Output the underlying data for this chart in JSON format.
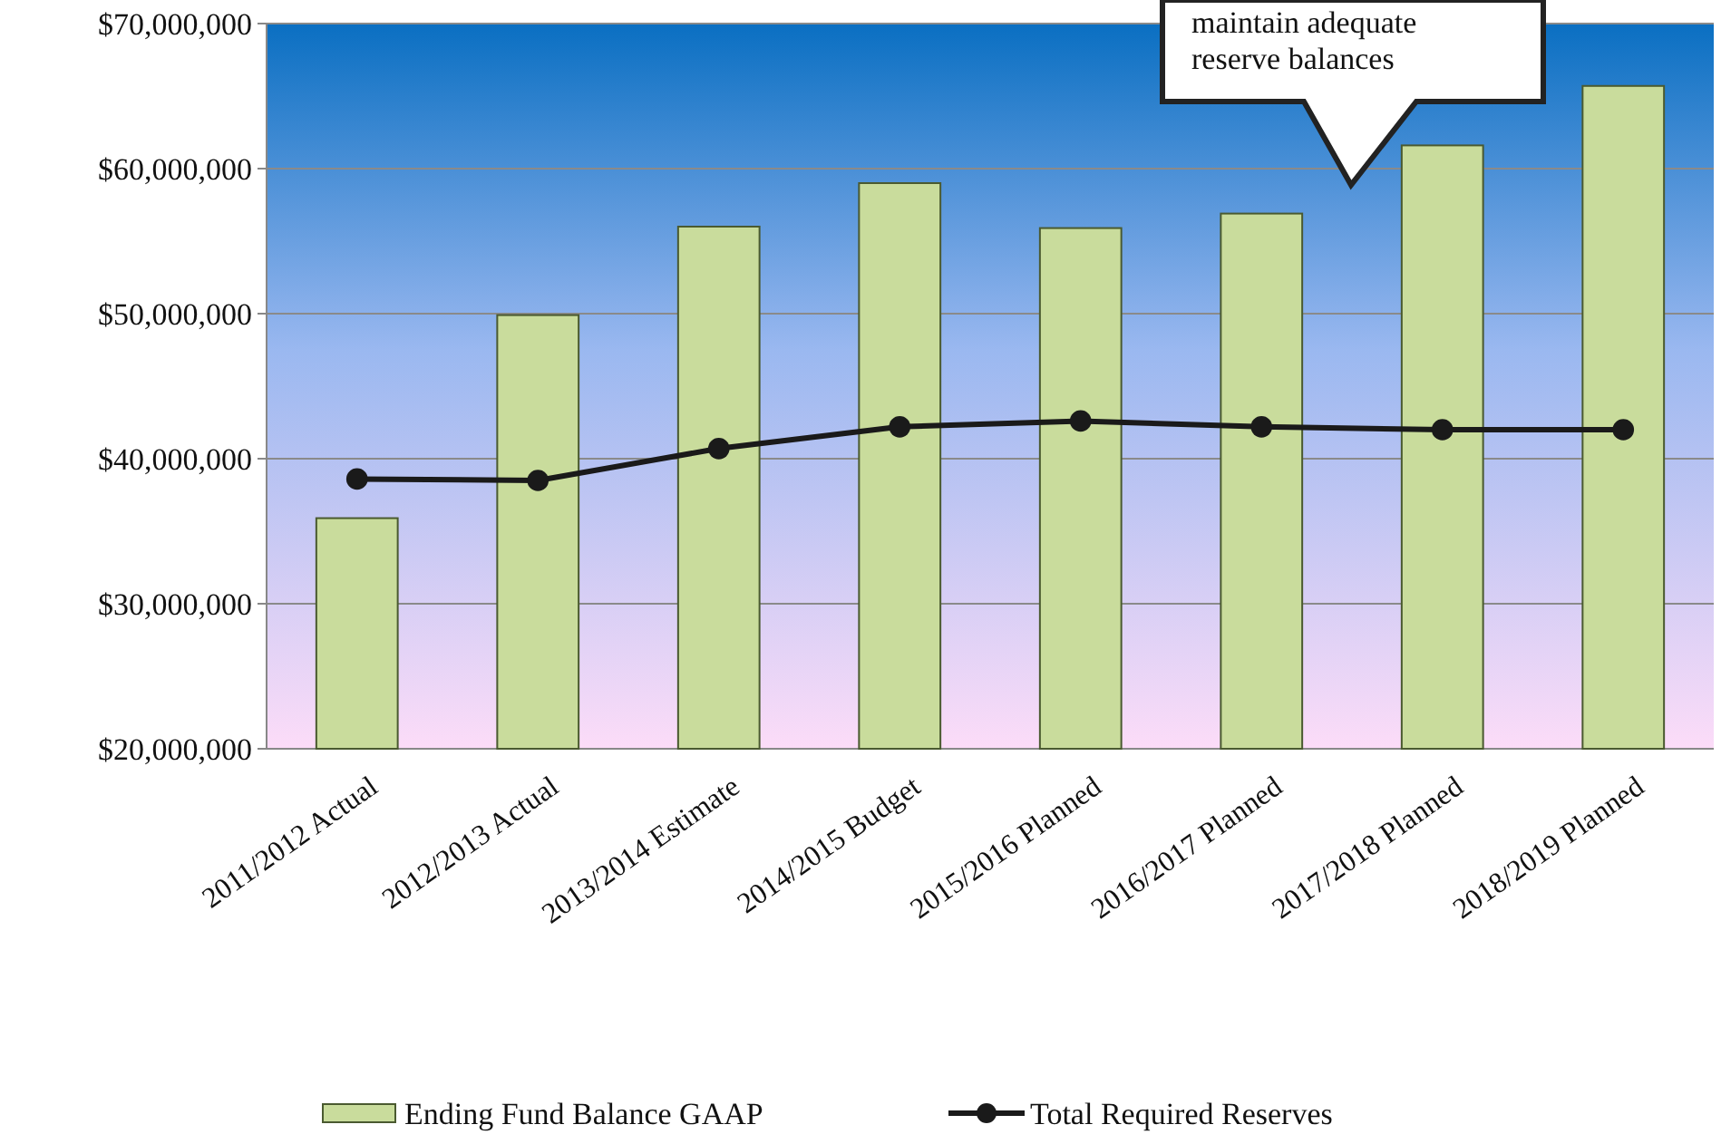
{
  "chart_data": {
    "type": "bar",
    "categories": [
      "2011/2012 Actual",
      "2012/2013 Actual",
      "2013/2014 Estimate",
      "2014/2015 Budget",
      "2015/2016 Planned",
      "2016/2017 Planned",
      "2017/2018 Planned",
      "2018/2019 Planned"
    ],
    "series": [
      {
        "name": "Ending Fund Balance GAAP",
        "color": "#c9dc9c",
        "values": [
          35900000,
          49900000,
          56000000,
          59000000,
          55900000,
          56900000,
          61600000,
          65700000
        ]
      },
      {
        "name": "Total Required Reserves",
        "type": "line",
        "color": "#1a1a1a",
        "values": [
          38600000,
          38500000,
          40700000,
          42200000,
          42600000,
          42200000,
          42000000,
          42000000
        ]
      }
    ],
    "ylim": [
      20000000,
      70000000
    ],
    "yticks": [
      {
        "value": 20000000,
        "label": "$20,000,000"
      },
      {
        "value": 30000000,
        "label": "$30,000,000"
      },
      {
        "value": 40000000,
        "label": "$40,000,000"
      },
      {
        "value": 50000000,
        "label": "$50,000,000"
      },
      {
        "value": 60000000,
        "label": "$60,000,000"
      },
      {
        "value": 70000000,
        "label": "$70,000,000"
      }
    ],
    "grid": "y",
    "legend": "bottom",
    "marker": "circle",
    "line_style": "solid",
    "annotations": [
      "maintain adequate reserve balances"
    ]
  }
}
